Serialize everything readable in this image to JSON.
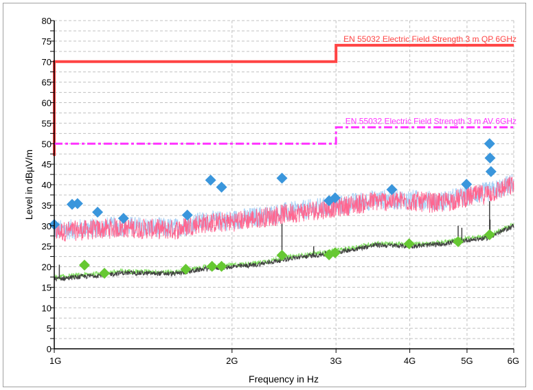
{
  "chart_data": {
    "type": "line",
    "xlabel": "Frequency in Hz",
    "ylabel": "Level in dBµV/m",
    "xscale": "log",
    "xlim": [
      1000000000.0,
      6000000000.0
    ],
    "ylim": [
      0,
      80
    ],
    "grid": true,
    "x_ticks": [
      {
        "value": 1000000000.0,
        "label": "1G"
      },
      {
        "value": 2000000000.0,
        "label": "2G"
      },
      {
        "value": 3000000000.0,
        "label": "3G"
      },
      {
        "value": 4000000000.0,
        "label": "4G"
      },
      {
        "value": 5000000000.0,
        "label": "5G"
      },
      {
        "value": 6000000000.0,
        "label": "6G"
      }
    ],
    "y_ticks": [
      0,
      5,
      10,
      15,
      20,
      25,
      30,
      35,
      40,
      45,
      50,
      55,
      60,
      65,
      70,
      75,
      80
    ],
    "limits": [
      {
        "name": "EN 55032 Electric Field Strength 3 m QP 6GHz",
        "color": "#ff4444",
        "style": "solid",
        "segments": [
          {
            "x": [
              1000000000.0,
              3000000000.0
            ],
            "y": 70
          },
          {
            "x": [
              3000000000.0,
              6000000000.0
            ],
            "y": 74
          }
        ],
        "start_drop_to": 47
      },
      {
        "name": "EN 55032 Electric Field Strength 3 m AV 6GHz",
        "color": "#ff33ff",
        "style": "dashdot",
        "segments": [
          {
            "x": [
              1000000000.0,
              3000000000.0
            ],
            "y": 50
          },
          {
            "x": [
              3000000000.0,
              6000000000.0
            ],
            "y": 54
          }
        ]
      }
    ],
    "traces": [
      {
        "kind": "peak",
        "color": "#ff6690",
        "underlay_color": "#a8d0f5",
        "baseline_ghz_db": [
          [
            1.0,
            28.5
          ],
          [
            1.3,
            29.5
          ],
          [
            1.6,
            29
          ],
          [
            1.75,
            30.5
          ],
          [
            2.0,
            31
          ],
          [
            2.5,
            33
          ],
          [
            3.0,
            34.5
          ],
          [
            3.5,
            36
          ],
          [
            4.0,
            36
          ],
          [
            4.5,
            35.5
          ],
          [
            5.0,
            37
          ],
          [
            5.5,
            38
          ],
          [
            6.0,
            40
          ]
        ],
        "noise_db": 2.5
      },
      {
        "kind": "average",
        "color": "#404040",
        "underlay_color": "#80e060",
        "baseline_ghz_db": [
          [
            1.0,
            17
          ],
          [
            1.3,
            18.5
          ],
          [
            1.6,
            18.3
          ],
          [
            1.8,
            19.5
          ],
          [
            2.2,
            20.5
          ],
          [
            2.5,
            22
          ],
          [
            3.0,
            23.5
          ],
          [
            3.5,
            25.3
          ],
          [
            4.0,
            25
          ],
          [
            4.5,
            25.5
          ],
          [
            5.0,
            26.5
          ],
          [
            5.4,
            27
          ],
          [
            6.0,
            30
          ]
        ],
        "noise_db": 0.6,
        "spikes_ghz_db": [
          [
            1.02,
            20.5
          ],
          [
            2.43,
            30.5
          ],
          [
            2.75,
            25
          ],
          [
            4.83,
            30
          ],
          [
            4.9,
            29.5
          ],
          [
            5.46,
            36
          ],
          [
            5.47,
            31.5
          ]
        ]
      }
    ],
    "qp_markers": {
      "color": "#3a96dc",
      "points": [
        [
          1.0,
          30.3
        ],
        [
          1.072,
          35.2
        ],
        [
          1.095,
          35.4
        ],
        [
          1.184,
          33.3
        ],
        [
          1.31,
          31.8
        ],
        [
          1.68,
          32.6
        ],
        [
          1.84,
          41.1
        ],
        [
          1.92,
          39.4
        ],
        [
          2.43,
          41.6
        ],
        [
          2.92,
          36.1
        ],
        [
          2.99,
          36.8
        ],
        [
          3.73,
          38.8
        ],
        [
          4.99,
          40.1
        ],
        [
          5.46,
          50.0
        ],
        [
          5.47,
          46.5
        ],
        [
          5.49,
          43.2
        ]
      ]
    },
    "av_markers": {
      "color": "#66c832",
      "points": [
        [
          1.125,
          20.4
        ],
        [
          1.216,
          18.4
        ],
        [
          1.67,
          19.4
        ],
        [
          1.85,
          20.1
        ],
        [
          1.92,
          20.1
        ],
        [
          2.43,
          22.8
        ],
        [
          2.92,
          22.9
        ],
        [
          2.99,
          23.4
        ],
        [
          3.99,
          25.6
        ],
        [
          4.83,
          26.1
        ],
        [
          5.46,
          27.8
        ]
      ]
    }
  }
}
